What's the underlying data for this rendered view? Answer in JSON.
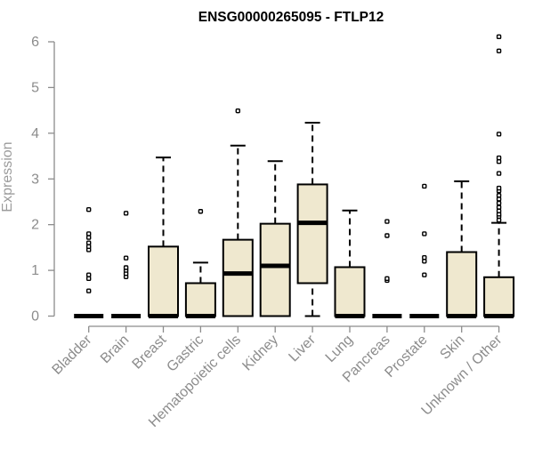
{
  "chart_data": {
    "type": "box",
    "title": "ENSG00000265095 - FTLP12",
    "xlabel": "",
    "ylabel": "Expression",
    "ylim": [
      0,
      6
    ],
    "yticks": [
      0,
      1,
      2,
      3,
      4,
      5,
      6
    ],
    "grid": false,
    "categories": [
      "Bladder",
      "Brain",
      "Breast",
      "Gastric",
      "Hematopoietic cells",
      "Kidney",
      "Liver",
      "Lung",
      "Pancreas",
      "Prostate",
      "Skin",
      "Unknown / Other"
    ],
    "boxes": [
      {
        "category": "Bladder",
        "min": 0,
        "q1": 0,
        "median": 0,
        "q3": 0,
        "max": 0,
        "outliers": [
          0.55,
          0.82,
          0.9,
          1.45,
          1.52,
          1.6,
          1.72,
          1.8,
          2.33
        ]
      },
      {
        "category": "Brain",
        "min": 0,
        "q1": 0,
        "median": 0,
        "q3": 0,
        "max": 0,
        "outliers": [
          0.86,
          0.93,
          1.0,
          1.06,
          1.27,
          2.25
        ]
      },
      {
        "category": "Breast",
        "min": 0,
        "q1": 0,
        "median": 0,
        "q3": 1.52,
        "max": 3.47,
        "outliers": []
      },
      {
        "category": "Gastric",
        "min": 0,
        "q1": 0,
        "median": 0,
        "q3": 0.72,
        "max": 1.17,
        "outliers": [
          2.29
        ]
      },
      {
        "category": "Hematopoietic cells",
        "min": 0,
        "q1": 0,
        "median": 0.93,
        "q3": 1.67,
        "max": 3.73,
        "outliers": [
          4.49
        ]
      },
      {
        "category": "Kidney",
        "min": 0,
        "q1": 0,
        "median": 1.1,
        "q3": 2.02,
        "max": 3.39,
        "outliers": []
      },
      {
        "category": "Liver",
        "min": 0,
        "q1": 0.72,
        "median": 2.04,
        "q3": 2.88,
        "max": 4.23,
        "outliers": []
      },
      {
        "category": "Lung",
        "min": 0,
        "q1": 0,
        "median": 0,
        "q3": 1.07,
        "max": 2.31,
        "outliers": []
      },
      {
        "category": "Pancreas",
        "min": 0,
        "q1": 0,
        "median": 0,
        "q3": 0,
        "max": 0,
        "outliers": [
          0.78,
          0.82,
          1.76,
          2.07
        ]
      },
      {
        "category": "Prostate",
        "min": 0,
        "q1": 0,
        "median": 0,
        "q3": 0,
        "max": 0,
        "outliers": [
          0.9,
          1.2,
          1.28,
          1.8,
          2.84
        ]
      },
      {
        "category": "Skin",
        "min": 0,
        "q1": 0,
        "median": 0,
        "q3": 1.4,
        "max": 2.95,
        "outliers": []
      },
      {
        "category": "Unknown / Other",
        "min": 0,
        "q1": 0,
        "median": 0,
        "q3": 0.85,
        "max": 2.04,
        "outliers": [
          2.1,
          2.18,
          2.23,
          2.3,
          2.38,
          2.47,
          2.56,
          2.64,
          2.74,
          2.8,
          3.12,
          3.38,
          3.46,
          3.98,
          5.8,
          6.11
        ]
      }
    ]
  }
}
